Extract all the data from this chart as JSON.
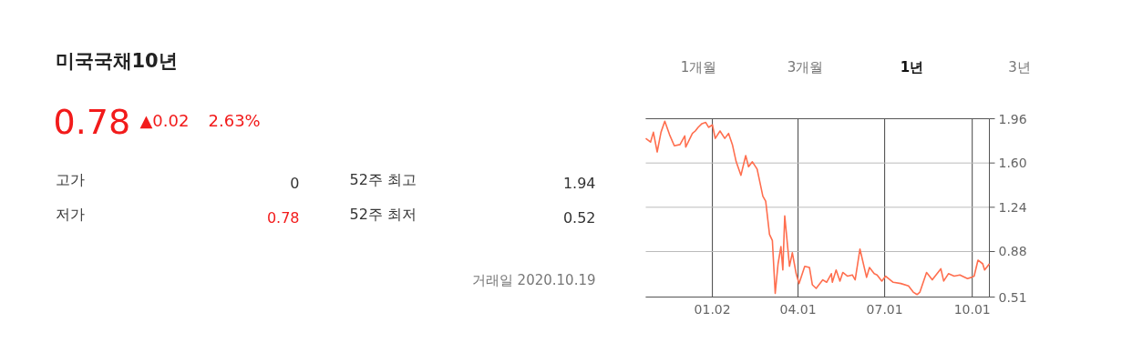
{
  "chart_data": [
    {
      "type": "other",
      "title": "미국국채10년",
      "annotations": [
        "0.78",
        "▲0.02",
        "2.63%",
        "고가",
        "0",
        "52주 최고",
        "1.94",
        "저가",
        "0.78",
        "52주 최저",
        "0.52",
        "거래일 2020.10.19"
      ]
    },
    {
      "type": "line",
      "annotations": [
        "1개월",
        "3개월",
        "1년",
        "3년"
      ],
      "x": [
        "2019-10-24",
        "2019-10-29",
        "2019-11-01",
        "2019-11-05",
        "2019-11-09",
        "2019-11-13",
        "2019-11-18",
        "2019-11-23",
        "2019-11-29",
        "2019-12-04",
        "2019-12-05",
        "2019-12-12",
        "2019-12-15",
        "2019-12-18",
        "2019-12-22",
        "2019-12-26",
        "2019-12-29",
        "2020-01-02",
        "2020-01-05",
        "2020-01-10",
        "2020-01-15",
        "2020-01-19",
        "2020-01-23",
        "2020-01-27",
        "2020-02-01",
        "2020-02-06",
        "2020-02-09",
        "2020-02-13",
        "2020-02-18",
        "2020-02-24",
        "2020-02-27",
        "2020-03-02",
        "2020-03-05",
        "2020-03-08",
        "2020-03-11",
        "2020-03-14",
        "2020-03-16",
        "2020-03-18",
        "2020-03-23",
        "2020-03-26",
        "2020-03-30",
        "2020-04-02",
        "2020-04-08",
        "2020-04-13",
        "2020-04-16",
        "2020-04-20",
        "2020-04-27",
        "2020-05-01",
        "2020-05-06",
        "2020-05-07",
        "2020-05-11",
        "2020-05-15",
        "2020-05-18",
        "2020-05-23",
        "2020-05-28",
        "2020-05-31",
        "2020-06-05",
        "2020-06-12",
        "2020-06-15",
        "2020-06-20",
        "2020-06-23",
        "2020-06-28",
        "2020-07-02",
        "2020-07-10",
        "2020-07-18",
        "2020-07-26",
        "2020-07-31",
        "2020-08-04",
        "2020-08-07",
        "2020-08-14",
        "2020-08-20",
        "2020-08-29",
        "2020-09-01",
        "2020-09-06",
        "2020-09-12",
        "2020-09-18",
        "2020-09-26",
        "2020-09-30",
        "2020-10-03",
        "2020-10-07",
        "2020-10-12",
        "2020-10-14",
        "2020-10-19"
      ],
      "series": [
        {
          "color": "#ff6e4e",
          "values": [
            1.8,
            1.77,
            1.85,
            1.69,
            1.85,
            1.94,
            1.83,
            1.74,
            1.75,
            1.82,
            1.73,
            1.84,
            1.86,
            1.89,
            1.92,
            1.93,
            1.89,
            1.91,
            1.8,
            1.86,
            1.8,
            1.84,
            1.75,
            1.61,
            1.5,
            1.66,
            1.57,
            1.61,
            1.55,
            1.33,
            1.29,
            1.02,
            0.97,
            0.54,
            0.78,
            0.92,
            0.73,
            1.17,
            0.76,
            0.87,
            0.7,
            0.62,
            0.76,
            0.75,
            0.61,
            0.58,
            0.65,
            0.63,
            0.7,
            0.63,
            0.73,
            0.64,
            0.71,
            0.68,
            0.69,
            0.65,
            0.9,
            0.67,
            0.75,
            0.7,
            0.69,
            0.64,
            0.68,
            0.63,
            0.62,
            0.6,
            0.55,
            0.53,
            0.55,
            0.71,
            0.65,
            0.74,
            0.64,
            0.7,
            0.68,
            0.69,
            0.66,
            0.67,
            0.68,
            0.81,
            0.78,
            0.73,
            0.78
          ]
        }
      ],
      "xlim": [
        "2019-10-24",
        "2020-10-19"
      ],
      "xticks": [
        {
          "value": "2020-01-02",
          "label": "01.02"
        },
        {
          "value": "2020-04-01",
          "label": "04.01"
        },
        {
          "value": "2020-07-01",
          "label": "07.01"
        },
        {
          "value": "2020-10-01",
          "label": "10.01"
        }
      ],
      "ylim": [
        0.51,
        1.96
      ],
      "yticks": [
        0.51,
        0.88,
        1.24,
        {
          "value": 1.6,
          "label": "1.60"
        },
        1.96
      ],
      "grid": true,
      "marker": "none",
      "line_style": "solid"
    }
  ]
}
